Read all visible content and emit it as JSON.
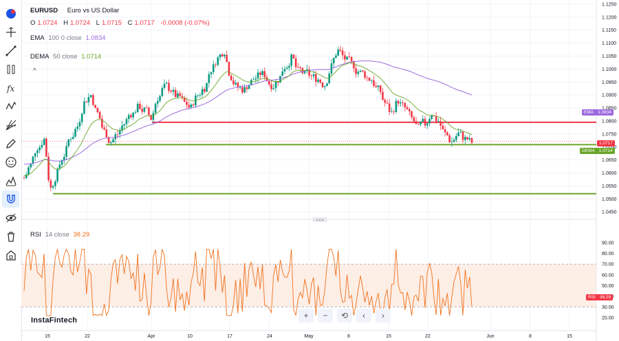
{
  "symbol": {
    "ticker": "EURUSD",
    "name": "Euro vs US Dollar",
    "ohlc": {
      "o_label": "O",
      "o": "1.0724",
      "h_label": "H",
      "h": "1.0724",
      "l_label": "L",
      "l": "1.0715",
      "c_label": "C",
      "c": "1.0717",
      "change": "-0.0008 (-0.07%)"
    }
  },
  "indicators": {
    "ema": {
      "name": "EMA",
      "params": "100 0 close",
      "value": "1.0834",
      "tag": "EMA",
      "color": "#9c6ade"
    },
    "dema": {
      "name": "DEMA",
      "params": "50 close",
      "value": "1.0714",
      "tag": "DEMA",
      "color": "#6aa528"
    },
    "rsi": {
      "name": "RSI",
      "params": "14 close",
      "value": "38.29",
      "tag": "RSI",
      "color": "#f0701a"
    }
  },
  "price_tag": {
    "value": "1.0717",
    "color": "#f23645"
  },
  "price_axis": [
    "1.1250",
    "1.1200",
    "1.1150",
    "1.1100",
    "1.1050",
    "1.1000",
    "1.0950",
    "1.0900",
    "1.0850",
    "1.0800",
    "1.0750",
    "1.0700",
    "1.0650",
    "1.0600",
    "1.0550",
    "1.0500",
    "1.0450"
  ],
  "rsi_axis": [
    "90.00",
    "80.00",
    "70.00",
    "60.00",
    "50.00",
    "40.00",
    "30.00",
    "20.00"
  ],
  "time_axis": [
    "15",
    "22",
    "Apr",
    "10",
    "17",
    "24",
    "May",
    "8",
    "15",
    "22",
    "Jun",
    "8",
    "15"
  ],
  "levels": {
    "resistance": 1.0795,
    "support": 1.0709,
    "low_support": 1.052,
    "resistance_color": "#f23645",
    "support_color": "#6aa528"
  },
  "toolbar_icons": [
    "tradingview-logo-icon",
    "crosshair-icon",
    "trend-line-icon",
    "fib-icon",
    "text-icon",
    "pattern-icon",
    "gann-icon",
    "brush-icon",
    "emoji-icon",
    "measure-icon",
    "magnet-icon",
    "eye-icon",
    "trash-icon",
    "lock-icon"
  ],
  "brand": "InstaFintech",
  "nav_buttons": {
    "zoom_in": "+",
    "zoom_out": "−",
    "reset": "⟲",
    "back": "‹",
    "forward": "›"
  },
  "collapse": "^",
  "colors": {
    "up": "#089981",
    "down": "#f23645",
    "grid": "#f0f3fa",
    "rsi_band": "#fdeee6"
  },
  "chart_data": {
    "type": "candlestick",
    "series": [
      {
        "name": "EURUSD",
        "close": [
          1.058,
          1.063,
          1.07,
          1.073,
          1.054,
          1.06,
          1.067,
          1.074,
          1.078,
          1.087,
          1.09,
          1.083,
          1.076,
          1.072,
          1.075,
          1.079,
          1.083,
          1.085,
          1.084,
          1.081,
          1.089,
          1.093,
          1.092,
          1.089,
          1.087,
          1.085,
          1.09,
          1.093,
          1.1,
          1.104,
          1.107,
          1.097,
          1.093,
          1.092,
          1.095,
          1.097,
          1.098,
          1.094,
          1.096,
          1.101,
          1.104,
          1.099,
          1.098,
          1.097,
          1.096,
          1.094,
          1.101,
          1.107,
          1.104,
          1.102,
          1.099,
          1.098,
          1.096,
          1.092,
          1.087,
          1.083,
          1.088,
          1.085,
          1.081,
          1.077,
          1.079,
          1.083,
          1.08,
          1.075,
          1.072,
          1.075,
          1.073,
          1.0717
        ]
      },
      {
        "name": "EMA",
        "value": "1.0834"
      },
      {
        "name": "DEMA",
        "value": "1.0714"
      },
      {
        "name": "RSI",
        "value": "38.29"
      }
    ],
    "ylim": [
      1.044,
      1.1255
    ],
    "rsi_ylim": [
      20,
      92
    ]
  }
}
